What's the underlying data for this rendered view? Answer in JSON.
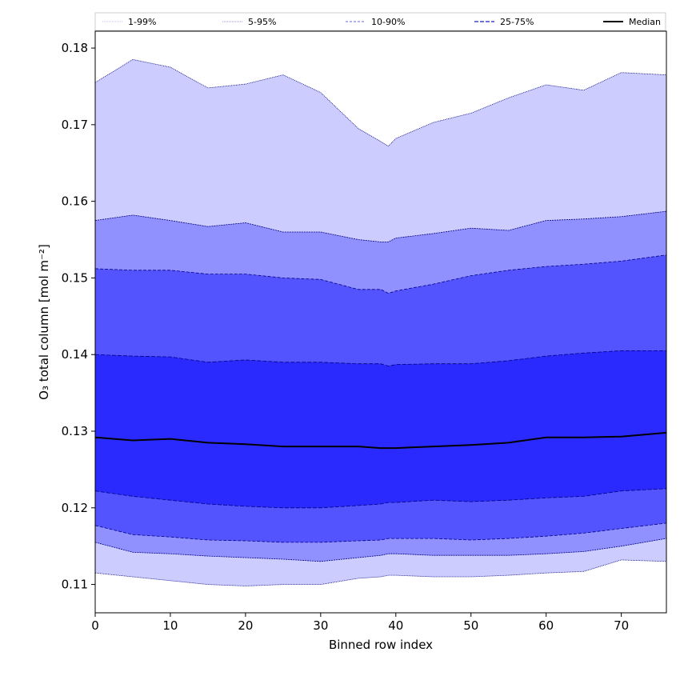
{
  "chart_data": {
    "type": "area",
    "xlabel": "Binned row index",
    "ylabel": "O₃ total column [mol m⁻²]",
    "xlim": [
      0,
      76
    ],
    "ylim": [
      0.1063,
      0.1822
    ],
    "x_ticks": [
      0,
      10,
      20,
      30,
      40,
      50,
      60,
      70
    ],
    "y_ticks": [
      0.11,
      0.12,
      0.13,
      0.14,
      0.15,
      0.16,
      0.17,
      0.18
    ],
    "x_tick_labels": [
      "0",
      "10",
      "20",
      "30",
      "40",
      "50",
      "60",
      "70"
    ],
    "y_tick_labels": [
      "0.11",
      "0.12",
      "0.13",
      "0.14",
      "0.15",
      "0.16",
      "0.17",
      "0.18"
    ],
    "legend_position": "top",
    "legend": [
      {
        "label": "1-99%",
        "color": "#ccccff"
      },
      {
        "label": "5-95%",
        "color": "#9090ff"
      },
      {
        "label": "10-90%",
        "color": "#5454ff"
      },
      {
        "label": "25-75%",
        "color": "#2a2aff"
      },
      {
        "label": "Median",
        "color": "#000000"
      }
    ],
    "x": [
      0,
      5,
      10,
      15,
      20,
      25,
      30,
      35,
      38,
      39,
      40,
      45,
      50,
      55,
      60,
      65,
      70,
      76
    ],
    "bands": [
      {
        "name": "1-99%",
        "color": "#ccccff",
        "upper": [
          0.1755,
          0.1785,
          0.1775,
          0.1748,
          0.1753,
          0.1765,
          0.1742,
          0.1695,
          0.1678,
          0.1672,
          0.1682,
          0.1703,
          0.1715,
          0.1735,
          0.1752,
          0.1745,
          0.1768,
          0.1765
        ],
        "lower": [
          0.1115,
          0.111,
          0.1105,
          0.11,
          0.1098,
          0.11,
          0.11,
          0.1108,
          0.111,
          0.1112,
          0.1112,
          0.111,
          0.111,
          0.1112,
          0.1115,
          0.1117,
          0.1132,
          0.113
        ]
      },
      {
        "name": "5-95%",
        "color": "#9090ff",
        "upper": [
          0.1575,
          0.1582,
          0.1575,
          0.1567,
          0.1572,
          0.156,
          0.156,
          0.155,
          0.1547,
          0.1547,
          0.1552,
          0.1558,
          0.1565,
          0.1562,
          0.1575,
          0.1577,
          0.158,
          0.1587
        ],
        "lower": [
          0.1155,
          0.1142,
          0.114,
          0.1137,
          0.1135,
          0.1133,
          0.113,
          0.1135,
          0.1138,
          0.114,
          0.114,
          0.1138,
          0.1138,
          0.1138,
          0.114,
          0.1143,
          0.115,
          0.116
        ]
      },
      {
        "name": "10-90%",
        "color": "#5454ff",
        "upper": [
          0.1512,
          0.151,
          0.151,
          0.1505,
          0.1505,
          0.15,
          0.1498,
          0.1485,
          0.1485,
          0.148,
          0.1483,
          0.1492,
          0.1503,
          0.151,
          0.1515,
          0.1518,
          0.1522,
          0.153
        ],
        "lower": [
          0.1177,
          0.1165,
          0.1162,
          0.1158,
          0.1157,
          0.1155,
          0.1155,
          0.1157,
          0.1158,
          0.116,
          0.116,
          0.116,
          0.1158,
          0.116,
          0.1163,
          0.1167,
          0.1173,
          0.118
        ]
      },
      {
        "name": "25-75%",
        "color": "#2a2aff",
        "upper": [
          0.14,
          0.1398,
          0.1397,
          0.139,
          0.1393,
          0.139,
          0.139,
          0.1388,
          0.1388,
          0.1385,
          0.1387,
          0.1388,
          0.1388,
          0.1392,
          0.1398,
          0.1402,
          0.1405,
          0.1405
        ],
        "lower": [
          0.1222,
          0.1215,
          0.121,
          0.1205,
          0.1202,
          0.12,
          0.12,
          0.1203,
          0.1205,
          0.1207,
          0.1207,
          0.121,
          0.1208,
          0.121,
          0.1213,
          0.1215,
          0.1222,
          0.1225
        ]
      }
    ],
    "median": [
      0.1292,
      0.1288,
      0.129,
      0.1285,
      0.1283,
      0.128,
      0.128,
      0.128,
      0.1278,
      0.1278,
      0.1278,
      0.128,
      0.1282,
      0.1285,
      0.1292,
      0.1292,
      0.1293,
      0.1298
    ]
  }
}
